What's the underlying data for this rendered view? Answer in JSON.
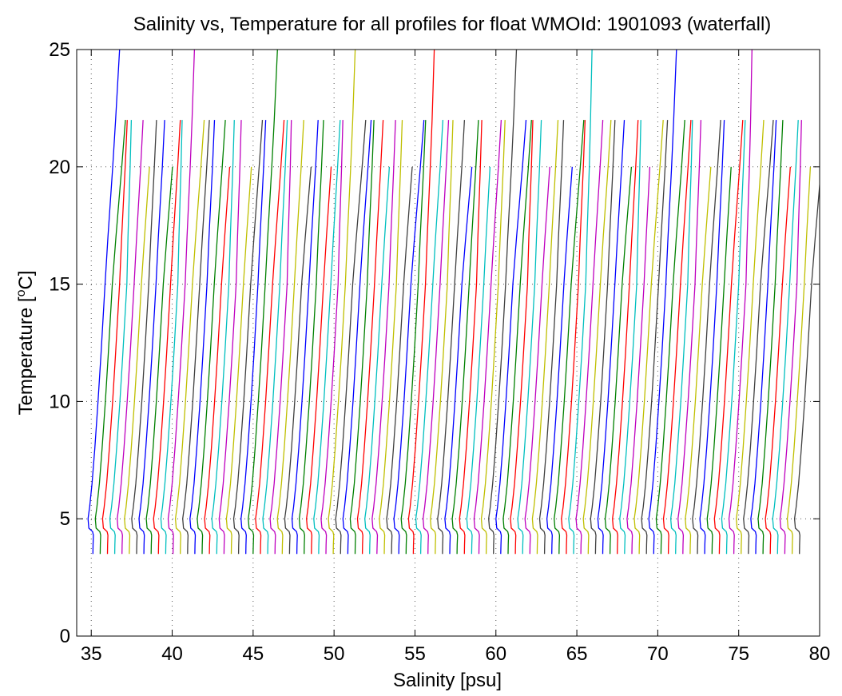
{
  "chart_data": {
    "type": "line",
    "title": "Salinity vs, Temperature for all profiles for float WMOId: 1901093 (waterfall)",
    "xlabel": "Salinity [psu]",
    "ylabel": "Temperature [",
    "ylabel_sup": "o",
    "ylabel_end": "C]",
    "xlim": [
      34.1,
      80
    ],
    "ylim": [
      0,
      25
    ],
    "x_ticks": [
      35,
      40,
      45,
      50,
      55,
      60,
      65,
      70,
      75,
      80
    ],
    "y_ticks": [
      0,
      5,
      10,
      15,
      20,
      25
    ],
    "grid": "dotted",
    "waterfall": {
      "profile_count": 98,
      "first_profile_surface_salinity": 34.8,
      "offset_per_profile": 0.45,
      "series_colors": [
        "#0000ff",
        "#008000",
        "#ff0000",
        "#00bfbf",
        "#bf00bf",
        "#bfbf00",
        "#404040"
      ]
    },
    "profile_shape": [
      {
        "temperature": 25.0,
        "salinity_anomaly": 1.8
      },
      {
        "temperature": 22.0,
        "salinity_anomaly": 1.6
      },
      {
        "temperature": 20.0,
        "salinity_anomaly": 1.45
      },
      {
        "temperature": 17.0,
        "salinity_anomaly": 1.2
      },
      {
        "temperature": 15.0,
        "salinity_anomaly": 1.05
      },
      {
        "temperature": 12.0,
        "salinity_anomaly": 0.8
      },
      {
        "temperature": 10.0,
        "salinity_anomaly": 0.62
      },
      {
        "temperature": 8.0,
        "salinity_anomaly": 0.42
      },
      {
        "temperature": 6.5,
        "salinity_anomaly": 0.25
      },
      {
        "temperature": 5.5,
        "salinity_anomaly": 0.1
      },
      {
        "temperature": 5.0,
        "salinity_anomaly": 0.0
      },
      {
        "temperature": 4.6,
        "salinity_anomaly": 0.05
      },
      {
        "temperature": 4.45,
        "salinity_anomaly": 0.28
      },
      {
        "temperature": 4.3,
        "salinity_anomaly": 0.33
      },
      {
        "temperature": 3.9,
        "salinity_anomaly": 0.31
      },
      {
        "temperature": 3.5,
        "salinity_anomaly": 0.3
      }
    ]
  }
}
